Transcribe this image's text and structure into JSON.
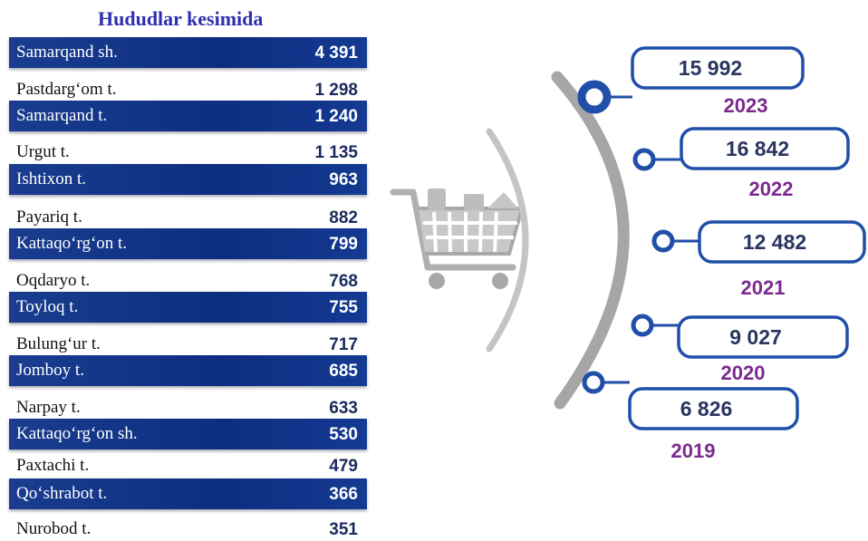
{
  "table": {
    "title": "Hududlar kesimida",
    "rows": [
      {
        "name": "Samarqand sh.",
        "value": "4 391",
        "band": true
      },
      {
        "name": "Pastdarg‘om  t.",
        "value": "1 298",
        "band": false
      },
      {
        "name": "Samarqand t.",
        "value": "1 240",
        "band": true
      },
      {
        "name": "Urgut t.",
        "value": "1 135",
        "band": false
      },
      {
        "name": "Ishtixon t.",
        "value": "963",
        "band": true
      },
      {
        "name": "Payariq t.",
        "value": "882",
        "band": false
      },
      {
        "name": "Kattaqo‘rg‘on t.",
        "value": "799",
        "band": true
      },
      {
        "name": "Oqdaryo t.",
        "value": "768",
        "band": false
      },
      {
        "name": "Toyloq t.",
        "value": "755",
        "band": true
      },
      {
        "name": "Bulung‘ur t.",
        "value": "717",
        "band": false
      },
      {
        "name": "Jomboy t.",
        "value": "685",
        "band": true
      },
      {
        "name": "Narpay t.",
        "value": "633",
        "band": false
      },
      {
        "name": "Kattaqo‘rg‘on sh.",
        "value": "530",
        "band": true
      },
      {
        "name": "Paxtachi t.",
        "value": "479",
        "band": false
      },
      {
        "name": "Qo‘shrabot t.",
        "value": "366",
        "band": true
      },
      {
        "name": "Nurobod t.",
        "value": "351",
        "band": false
      }
    ]
  },
  "timeline": {
    "items": [
      {
        "year": "2023",
        "value": "15 992"
      },
      {
        "year": "2022",
        "value": "16 842"
      },
      {
        "year": "2021",
        "value": "12 482"
      },
      {
        "year": "2020",
        "value": "9 027"
      },
      {
        "year": "2019",
        "value": "6 826"
      }
    ]
  },
  "icon": "shopping-cart-icon",
  "colors": {
    "band": "#0d2d80",
    "title": "#2f2fb0",
    "year": "#7b2a8f",
    "box_border": "#1f4fa8",
    "arc": "#9a9a9a"
  },
  "chart_data": [
    {
      "type": "table",
      "title": "Hududlar kesimida",
      "categories": [
        "Samarqand sh.",
        "Pastdarg‘om  t.",
        "Samarqand t.",
        "Urgut t.",
        "Ishtixon t.",
        "Payariq t.",
        "Kattaqo‘rg‘on t.",
        "Oqdaryo t.",
        "Toyloq t.",
        "Bulung‘ur t.",
        "Jomboy t.",
        "Narpay t.",
        "Kattaqo‘rg‘on sh.",
        "Paxtachi t.",
        "Qo‘shrabot t.",
        "Nurobod t."
      ],
      "values": [
        4391,
        1298,
        1240,
        1135,
        963,
        882,
        799,
        768,
        755,
        717,
        685,
        633,
        530,
        479,
        366,
        351
      ]
    },
    {
      "type": "line",
      "x": [
        "2019",
        "2020",
        "2021",
        "2022",
        "2023"
      ],
      "values": [
        6826,
        9027,
        12482,
        16842,
        15992
      ]
    }
  ]
}
